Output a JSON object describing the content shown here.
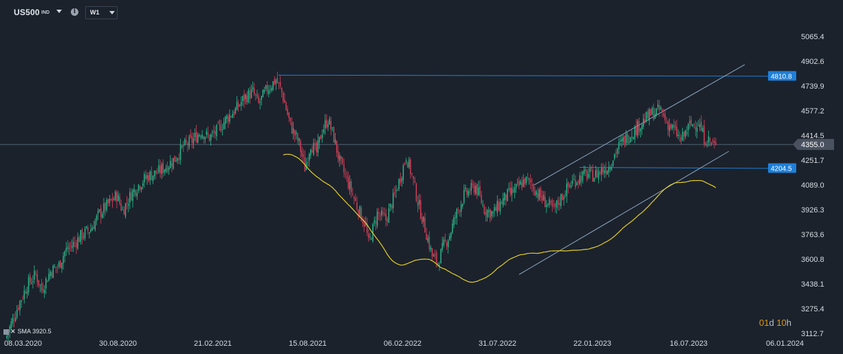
{
  "toolbar": {
    "symbol": "US500",
    "symbol_type": "IND",
    "timeframe": "W1",
    "info_icon": "info-icon",
    "symbol_dropdown_icon": "chevron-down-icon",
    "timeframe_dropdown_icon": "chevron-down-icon"
  },
  "indicator_legend": {
    "icons": [
      "indicator-settings-icon",
      "close-icon"
    ],
    "label": "SMA",
    "value": "3920.5"
  },
  "timer": {
    "days": "01",
    "days_unit": "d",
    "hours": "10",
    "hours_unit": "h"
  },
  "colors": {
    "background": "#1b222c",
    "bull": "#2fbf8f",
    "bear": "#e0415a",
    "sma": "#e6cf28",
    "channel": "#8fa7c0",
    "horizontal_line": "#1f7fd8",
    "price_label_bg": "#1f7fd8",
    "current_price_bg": "#4a5260",
    "axis_text": "#d8dce2"
  },
  "chart_data": {
    "type": "candlestick",
    "timeframe": "W1",
    "x_ticks": [
      "08.03.2020",
      "30.08.2020",
      "21.02.2021",
      "15.08.2021",
      "06.02.2022",
      "31.07.2022",
      "22.01.2023",
      "16.07.2023",
      "06.01.2024"
    ],
    "y_ticks": [
      5065.4,
      4902.6,
      4739.9,
      4577.2,
      4414.5,
      4251.7,
      4089.0,
      3926.3,
      3763.6,
      3600.8,
      3438.1,
      3275.4,
      3112.7
    ],
    "ylim": [
      3112.7,
      5065.4
    ],
    "current_price": 4355.0,
    "price_levels": [
      {
        "label": "4810.8",
        "value": 4810.8
      },
      {
        "label": "4204.5",
        "value": 4204.5
      }
    ],
    "sma": {
      "name": "SMA",
      "period_label": "3920.5"
    },
    "candles_close_path": [
      [
        0,
        3100
      ],
      [
        8,
        3300
      ],
      [
        14,
        3430
      ],
      [
        20,
        3500
      ],
      [
        24,
        3400
      ],
      [
        30,
        3520
      ],
      [
        36,
        3560
      ],
      [
        40,
        3650
      ],
      [
        46,
        3700
      ],
      [
        52,
        3760
      ],
      [
        58,
        3800
      ],
      [
        64,
        3900
      ],
      [
        70,
        3960
      ],
      [
        76,
        4020
      ],
      [
        80,
        3920
      ],
      [
        86,
        4030
      ],
      [
        92,
        4100
      ],
      [
        98,
        4150
      ],
      [
        104,
        4170
      ],
      [
        110,
        4210
      ],
      [
        116,
        4260
      ],
      [
        122,
        4340
      ],
      [
        128,
        4380
      ],
      [
        134,
        4440
      ],
      [
        140,
        4400
      ],
      [
        146,
        4450
      ],
      [
        152,
        4530
      ],
      [
        158,
        4580
      ],
      [
        164,
        4660
      ],
      [
        170,
        4700
      ],
      [
        174,
        4620
      ],
      [
        180,
        4720
      ],
      [
        186,
        4780
      ],
      [
        190,
        4700
      ],
      [
        196,
        4480
      ],
      [
        202,
        4360
      ],
      [
        206,
        4200
      ],
      [
        210,
        4360
      ],
      [
        214,
        4300
      ],
      [
        218,
        4450
      ],
      [
        222,
        4520
      ],
      [
        226,
        4400
      ],
      [
        230,
        4240
      ],
      [
        236,
        4100
      ],
      [
        242,
        3950
      ],
      [
        248,
        3820
      ],
      [
        250,
        3700
      ],
      [
        256,
        3900
      ],
      [
        262,
        3860
      ],
      [
        268,
        4020
      ],
      [
        272,
        4140
      ],
      [
        276,
        4280
      ],
      [
        280,
        4150
      ],
      [
        284,
        3980
      ],
      [
        290,
        3770
      ],
      [
        294,
        3620
      ],
      [
        298,
        3580
      ],
      [
        302,
        3690
      ],
      [
        306,
        3760
      ],
      [
        310,
        3880
      ],
      [
        316,
        4020
      ],
      [
        320,
        4050
      ],
      [
        324,
        4080
      ],
      [
        330,
        3930
      ],
      [
        336,
        3900
      ],
      [
        342,
        3980
      ],
      [
        346,
        4020
      ],
      [
        352,
        4060
      ],
      [
        358,
        4120
      ],
      [
        362,
        4100
      ],
      [
        368,
        4020
      ],
      [
        374,
        3960
      ],
      [
        378,
        3920
      ],
      [
        384,
        4020
      ],
      [
        390,
        4100
      ],
      [
        396,
        4140
      ],
      [
        402,
        4160
      ],
      [
        406,
        4150
      ],
      [
        410,
        4180
      ],
      [
        416,
        4210
      ],
      [
        422,
        4330
      ],
      [
        428,
        4400
      ],
      [
        434,
        4450
      ],
      [
        440,
        4510
      ],
      [
        446,
        4560
      ],
      [
        452,
        4580
      ],
      [
        456,
        4500
      ],
      [
        462,
        4440
      ],
      [
        466,
        4380
      ],
      [
        472,
        4480
      ],
      [
        478,
        4500
      ],
      [
        482,
        4400
      ],
      [
        488,
        4360
      ],
      [
        490,
        4330
      ]
    ]
  }
}
